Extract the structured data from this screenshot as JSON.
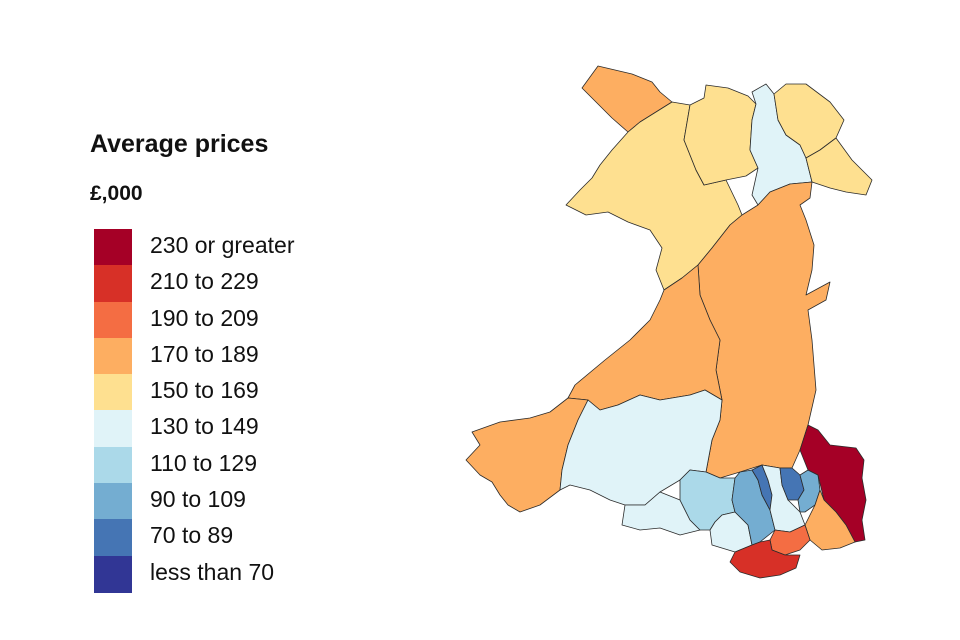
{
  "legend": {
    "title": "Average prices",
    "subtitle": "£,000",
    "items": [
      {
        "label": "230 or greater",
        "color": "#a50026"
      },
      {
        "label": "210 to 229",
        "color": "#d73027"
      },
      {
        "label": "190 to 209",
        "color": "#f46d43"
      },
      {
        "label": "170 to 189",
        "color": "#fdae61"
      },
      {
        "label": "150 to 169",
        "color": "#fee090"
      },
      {
        "label": "130 to 149",
        "color": "#e0f3f8"
      },
      {
        "label": "110 to 129",
        "color": "#abd9e9"
      },
      {
        "label": "90 to 109",
        "color": "#74add1"
      },
      {
        "label": "70 to 89",
        "color": "#4575b4"
      },
      {
        "label": "less than 70",
        "color": "#313695"
      }
    ]
  },
  "map": {
    "regions": [
      {
        "id": "anglesey",
        "band": 3
      },
      {
        "id": "gwynedd",
        "band": 4
      },
      {
        "id": "conwy",
        "band": 4
      },
      {
        "id": "denbighshire",
        "band": 5
      },
      {
        "id": "flintshire",
        "band": 4
      },
      {
        "id": "wrexham",
        "band": 4
      },
      {
        "id": "powys",
        "band": 3
      },
      {
        "id": "ceredigion",
        "band": 3
      },
      {
        "id": "pembrokeshire",
        "band": 3
      },
      {
        "id": "carmarthenshire",
        "band": 5
      },
      {
        "id": "swansea",
        "band": 5
      },
      {
        "id": "neath-port-talbot",
        "band": 6
      },
      {
        "id": "bridgend",
        "band": 5
      },
      {
        "id": "rhondda-cynon-taf",
        "band": 7
      },
      {
        "id": "merthyr-tydfil",
        "band": 8
      },
      {
        "id": "caerphilly",
        "band": 5
      },
      {
        "id": "blaenau-gwent",
        "band": 8
      },
      {
        "id": "torfaen",
        "band": 7
      },
      {
        "id": "monmouthshire",
        "band": 0
      },
      {
        "id": "newport",
        "band": 3
      },
      {
        "id": "cardiff",
        "band": 2
      },
      {
        "id": "vale-of-glamorgan",
        "band": 1
      }
    ]
  }
}
